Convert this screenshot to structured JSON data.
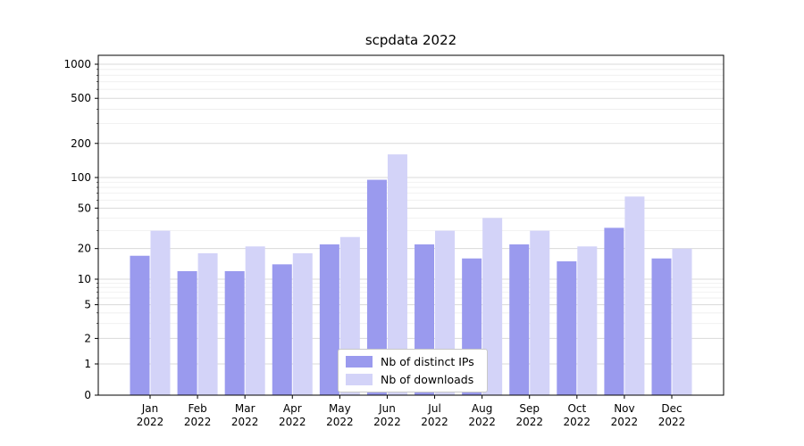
{
  "title": "scpdata 2022",
  "chart_data": {
    "type": "bar",
    "title": "scpdata 2022",
    "xlabel": "",
    "ylabel": "",
    "yscale": "symlog",
    "yticks": [
      0,
      1,
      2,
      5,
      10,
      20,
      50,
      100,
      200,
      500,
      1000
    ],
    "ylim": [
      0,
      1200
    ],
    "grid": true,
    "legend_position": "bottom-center",
    "year_label": "2022",
    "categories": [
      "Jan",
      "Feb",
      "Mar",
      "Apr",
      "May",
      "Jun",
      "Jul",
      "Aug",
      "Sep",
      "Oct",
      "Nov",
      "Dec"
    ],
    "series": [
      {
        "name": "Nb of distinct IPs",
        "color": "#9a9aee",
        "values": [
          17,
          12,
          12,
          14,
          22,
          95,
          22,
          16,
          22,
          15,
          32,
          16
        ]
      },
      {
        "name": "Nb of downloads",
        "color": "#d3d3f8",
        "values": [
          30,
          18,
          21,
          18,
          26,
          160,
          30,
          40,
          30,
          21,
          65,
          20
        ]
      }
    ]
  }
}
